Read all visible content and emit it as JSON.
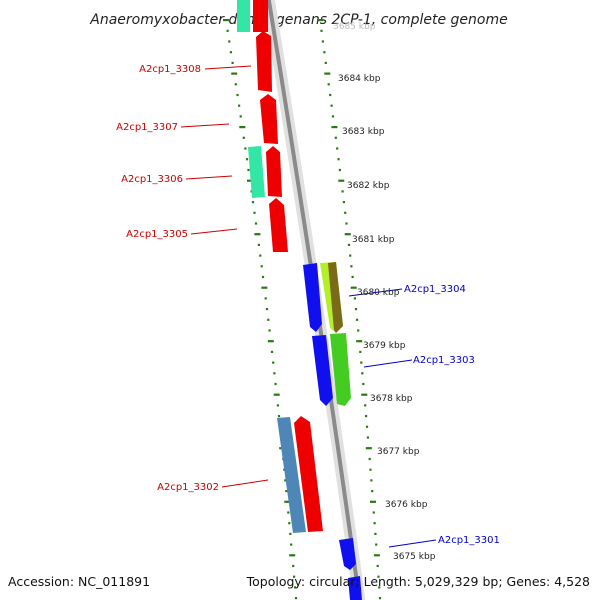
{
  "title": "Anaeromyxobacter dehalogenans 2CP-1, complete genome",
  "footer": {
    "accession": "Accession: NC_011891",
    "summary": "Topology: circular; Length: 5,029,329 bp; Genes: 4,528"
  },
  "colors": {
    "reverse_label": "#cc0000",
    "forward_label": "#0000cc",
    "tick": "#2a7a14",
    "backbone": "#888888"
  },
  "kbp_labels": [
    {
      "text": "3684 kbp"
    },
    {
      "text": "3683 kbp"
    },
    {
      "text": "3682 kbp"
    },
    {
      "text": "3681 kbp"
    },
    {
      "text": "3680 kbp"
    },
    {
      "text": "3679 kbp"
    },
    {
      "text": "3678 kbp"
    },
    {
      "text": "3677 kbp"
    },
    {
      "text": "3676 kbp"
    },
    {
      "text": "3675 kbp"
    }
  ],
  "gene_labels": {
    "reverse": [
      "A2cp1_3308",
      "A2cp1_3307",
      "A2cp1_3306",
      "A2cp1_3305",
      "A2cp1_3302"
    ],
    "forward": [
      "A2cp1_3304",
      "A2cp1_3303",
      "A2cp1_3301"
    ]
  }
}
